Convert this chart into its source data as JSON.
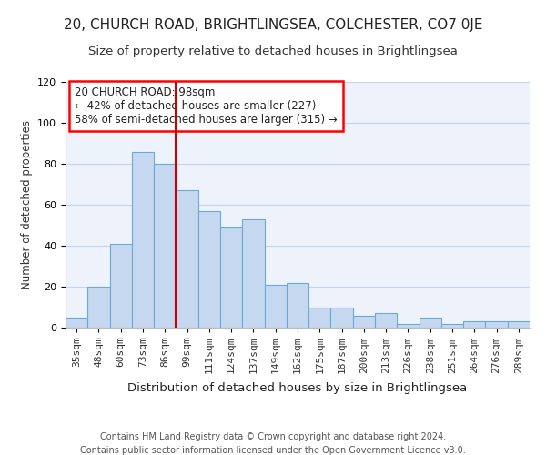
{
  "title1": "20, CHURCH ROAD, BRIGHTLINGSEA, COLCHESTER, CO7 0JE",
  "title2": "Size of property relative to detached houses in Brightlingsea",
  "xlabel": "Distribution of detached houses by size in Brightlingsea",
  "ylabel": "Number of detached properties",
  "categories": [
    "35sqm",
    "48sqm",
    "60sqm",
    "73sqm",
    "86sqm",
    "99sqm",
    "111sqm",
    "124sqm",
    "137sqm",
    "149sqm",
    "162sqm",
    "175sqm",
    "187sqm",
    "200sqm",
    "213sqm",
    "226sqm",
    "238sqm",
    "251sqm",
    "264sqm",
    "276sqm",
    "289sqm"
  ],
  "values": [
    5,
    20,
    41,
    86,
    80,
    67,
    57,
    49,
    53,
    21,
    22,
    10,
    10,
    6,
    7,
    2,
    5,
    2,
    3,
    3,
    3
  ],
  "bar_color": "#c5d8f0",
  "bar_edge_color": "#6aaad4",
  "vline_x": 5.5,
  "vline_color": "#cc0000",
  "annotation_box_text": "20 CHURCH ROAD: 98sqm\n← 42% of detached houses are smaller (227)\n58% of semi-detached houses are larger (315) →",
  "ylim": [
    0,
    120
  ],
  "yticks": [
    0,
    20,
    40,
    60,
    80,
    100,
    120
  ],
  "bg_color": "#edf2fb",
  "fig_bg_color": "#ffffff",
  "footer1": "Contains HM Land Registry data © Crown copyright and database right 2024.",
  "footer2": "Contains public sector information licensed under the Open Government Licence v3.0.",
  "title1_fontsize": 11,
  "title2_fontsize": 9.5,
  "xlabel_fontsize": 9.5,
  "ylabel_fontsize": 8.5,
  "tick_fontsize": 8,
  "annot_fontsize": 8.5,
  "footer_fontsize": 7
}
